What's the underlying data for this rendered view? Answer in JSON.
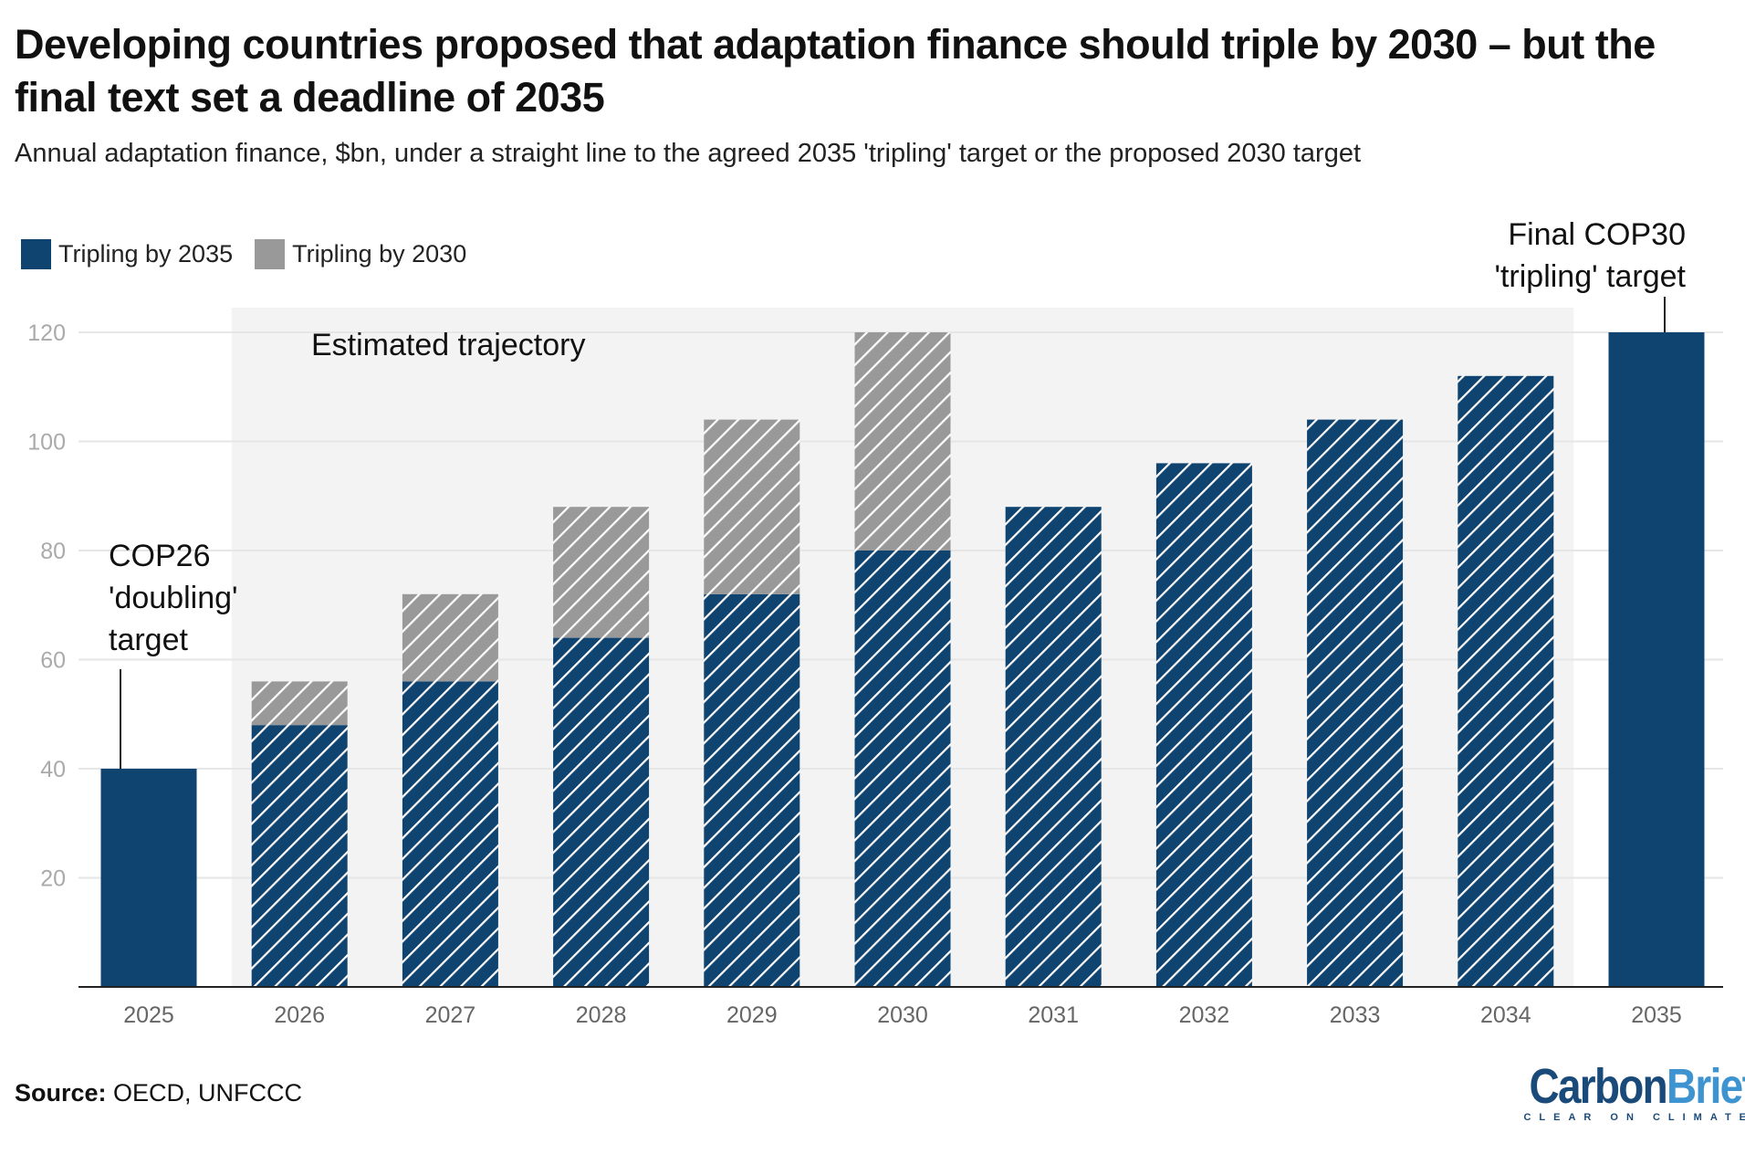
{
  "title": "Developing countries proposed that adaptation finance should triple by 2030 – but the final text set a deadline of 2035",
  "subtitle": "Annual adaptation finance, $bn, under a straight line to the agreed 2035 'tripling' target or the proposed 2030 target",
  "source_label": "Source:",
  "source_text": " OECD, UNFCCC",
  "logo": {
    "part1": "Carbon",
    "part2": "Brief",
    "tagline": "CLEAR ON CLIMATE",
    "color1": "#1a4a7a",
    "color2": "#3d94d1"
  },
  "colors": {
    "tripling_2035": "#0f4370",
    "tripling_2030": "#999999",
    "shade": "#f3f3f3",
    "grid": "#e6e6e6"
  },
  "chart_data": {
    "type": "bar",
    "stacked": true,
    "categories": [
      "2025",
      "2026",
      "2027",
      "2028",
      "2029",
      "2030",
      "2031",
      "2032",
      "2033",
      "2034",
      "2035"
    ],
    "series": [
      {
        "name": "Tripling by 2035",
        "values": [
          40,
          48,
          56,
          64,
          72,
          80,
          88,
          96,
          104,
          112,
          120
        ]
      },
      {
        "name": "Tripling by 2030",
        "values": [
          0,
          8,
          16,
          24,
          32,
          40,
          0,
          0,
          0,
          0,
          0
        ]
      }
    ],
    "hatched_categories": [
      "2026",
      "2027",
      "2028",
      "2029",
      "2030",
      "2031",
      "2032",
      "2033",
      "2034"
    ],
    "shaded_region": {
      "from": "2026",
      "to": "2034",
      "label": "Estimated trajectory"
    },
    "yticks": [
      20,
      40,
      60,
      80,
      100,
      120
    ],
    "ylim": [
      0,
      125
    ],
    "grid": true,
    "legend": "top-left",
    "annotations": [
      {
        "category": "2025",
        "value": 40,
        "lines": [
          "COP26",
          "'doubling'",
          "target"
        ]
      },
      {
        "category": "2035",
        "value": 120,
        "lines": [
          "Final COP30",
          "'tripling' target"
        ]
      }
    ]
  }
}
